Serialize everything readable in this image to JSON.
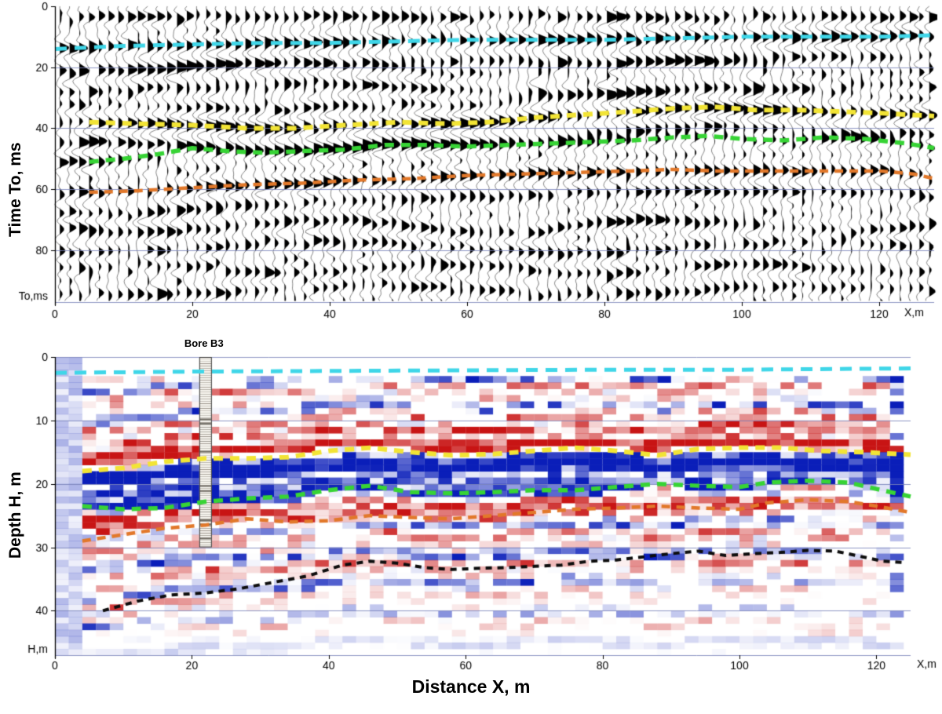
{
  "figure": {
    "background": "#ffffff",
    "grid_color": "#7b85bb"
  },
  "chart_data": [
    {
      "id": "time_section",
      "type": "heatmap",
      "subtype": "seismic-wiggle-section",
      "title": "",
      "ylabel": "Time To, ms",
      "xlabel": "",
      "y_corner_label": "To,ms",
      "x_corner_label": "X,m",
      "y_ticks": [
        0,
        20,
        40,
        60,
        80
      ],
      "x_ticks": [
        0,
        20,
        40,
        60,
        80,
        100,
        120
      ],
      "ylim": [
        0,
        97
      ],
      "xlim": [
        0,
        128
      ],
      "grid": true,
      "horizons": [
        {
          "name": "cyan",
          "color": "#3fd6e8",
          "points": [
            [
              0,
              14
            ],
            [
              10,
              13
            ],
            [
              20,
              12.5
            ],
            [
              30,
              12
            ],
            [
              40,
              12
            ],
            [
              50,
              11.5
            ],
            [
              60,
              11
            ],
            [
              70,
              11
            ],
            [
              80,
              11
            ],
            [
              90,
              10.5
            ],
            [
              100,
              10
            ],
            [
              110,
              10
            ],
            [
              120,
              10
            ],
            [
              128,
              9.5
            ]
          ]
        },
        {
          "name": "yellow",
          "color": "#f2e435",
          "points": [
            [
              5,
              38
            ],
            [
              12,
              38.5
            ],
            [
              20,
              39
            ],
            [
              28,
              40
            ],
            [
              35,
              40
            ],
            [
              42,
              39
            ],
            [
              50,
              38
            ],
            [
              57,
              38.5
            ],
            [
              63,
              38
            ],
            [
              70,
              36.5
            ],
            [
              77,
              35.5
            ],
            [
              84,
              34.5
            ],
            [
              90,
              33.5
            ],
            [
              96,
              33
            ],
            [
              102,
              34
            ],
            [
              108,
              34
            ],
            [
              114,
              34.5
            ],
            [
              120,
              35
            ],
            [
              128,
              36
            ]
          ]
        },
        {
          "name": "green",
          "color": "#37d435",
          "points": [
            [
              5,
              51
            ],
            [
              10,
              50
            ],
            [
              15,
              48.5
            ],
            [
              20,
              46.5
            ],
            [
              25,
              47.5
            ],
            [
              30,
              48
            ],
            [
              36,
              47.5
            ],
            [
              42,
              47
            ],
            [
              48,
              45.5
            ],
            [
              54,
              45.5
            ],
            [
              60,
              46
            ],
            [
              66,
              45.5
            ],
            [
              72,
              45
            ],
            [
              78,
              44.5
            ],
            [
              84,
              44
            ],
            [
              90,
              43
            ],
            [
              95,
              42.5
            ],
            [
              100,
              43.5
            ],
            [
              106,
              44
            ],
            [
              112,
              43
            ],
            [
              118,
              43.5
            ],
            [
              124,
              45
            ],
            [
              128,
              46.5
            ]
          ]
        },
        {
          "name": "orange",
          "color": "#e2782a",
          "points": [
            [
              5,
              61
            ],
            [
              12,
              60.5
            ],
            [
              20,
              59.5
            ],
            [
              28,
              58.5
            ],
            [
              36,
              58
            ],
            [
              44,
              57
            ],
            [
              52,
              56.5
            ],
            [
              60,
              55.5
            ],
            [
              68,
              55
            ],
            [
              76,
              54.5
            ],
            [
              84,
              54
            ],
            [
              90,
              53.5
            ],
            [
              96,
              54
            ],
            [
              104,
              54
            ],
            [
              112,
              54
            ],
            [
              120,
              54
            ],
            [
              125,
              55
            ],
            [
              128,
              56.5
            ]
          ]
        }
      ]
    },
    {
      "id": "depth_section",
      "type": "heatmap",
      "subtype": "seismic-amplitude-depth-section",
      "title": "",
      "ylabel": "Depth  H, m",
      "xlabel": "Distance X, m",
      "y_corner_label": "H,m",
      "x_corner_label": "X,m",
      "y_ticks": [
        0,
        10,
        20,
        30,
        40
      ],
      "x_ticks": [
        0,
        20,
        40,
        60,
        80,
        100,
        120
      ],
      "ylim": [
        0,
        47
      ],
      "xlim": [
        0,
        125
      ],
      "grid": true,
      "amplitude_colors": {
        "positive": "#c81414",
        "negative": "#0a1eb9"
      },
      "borehole": {
        "label": "Bore B3",
        "x": 22,
        "depth_top": 0,
        "depth_bottom": 30
      },
      "horizons": [
        {
          "name": "cyan",
          "color": "#3fd6e8",
          "points": [
            [
              0,
              2.5
            ],
            [
              20,
              2.3
            ],
            [
              40,
              2.2
            ],
            [
              60,
              2.1
            ],
            [
              80,
              2
            ],
            [
              100,
              2
            ],
            [
              125,
              1.8
            ]
          ]
        },
        {
          "name": "yellow",
          "color": "#f2e435",
          "points": [
            [
              4,
              18
            ],
            [
              10,
              17.5
            ],
            [
              16,
              16.5
            ],
            [
              22,
              16
            ],
            [
              28,
              16
            ],
            [
              34,
              15.8
            ],
            [
              40,
              14.8
            ],
            [
              46,
              14.3
            ],
            [
              52,
              15
            ],
            [
              58,
              15.5
            ],
            [
              64,
              15.3
            ],
            [
              70,
              14.8
            ],
            [
              76,
              14.3
            ],
            [
              82,
              14.8
            ],
            [
              88,
              15.5
            ],
            [
              94,
              14.5
            ],
            [
              100,
              14.3
            ],
            [
              106,
              14.3
            ],
            [
              112,
              14.8
            ],
            [
              118,
              15
            ],
            [
              125,
              15.4
            ]
          ]
        },
        {
          "name": "green",
          "color": "#37d435",
          "points": [
            [
              4,
              23.5
            ],
            [
              10,
              24
            ],
            [
              16,
              23.8
            ],
            [
              22,
              22.8
            ],
            [
              28,
              22.3
            ],
            [
              34,
              22
            ],
            [
              40,
              21
            ],
            [
              46,
              20.3
            ],
            [
              52,
              21.3
            ],
            [
              58,
              21.5
            ],
            [
              64,
              21.3
            ],
            [
              70,
              21
            ],
            [
              76,
              21
            ],
            [
              82,
              20.5
            ],
            [
              88,
              20
            ],
            [
              94,
              20.3
            ],
            [
              100,
              20.5
            ],
            [
              104,
              19.8
            ],
            [
              110,
              19.5
            ],
            [
              116,
              19.8
            ],
            [
              120,
              20.8
            ],
            [
              125,
              22
            ]
          ]
        },
        {
          "name": "orange",
          "color": "#e2782a",
          "points": [
            [
              4,
              29
            ],
            [
              10,
              28
            ],
            [
              16,
              27
            ],
            [
              22,
              26.5
            ],
            [
              28,
              25.5
            ],
            [
              34,
              26
            ],
            [
              40,
              25.8
            ],
            [
              46,
              25
            ],
            [
              52,
              25.3
            ],
            [
              58,
              25.5
            ],
            [
              64,
              25
            ],
            [
              70,
              24.5
            ],
            [
              76,
              24
            ],
            [
              82,
              23.8
            ],
            [
              88,
              23.5
            ],
            [
              94,
              23.8
            ],
            [
              100,
              24
            ],
            [
              104,
              23
            ],
            [
              110,
              22.5
            ],
            [
              116,
              22.8
            ],
            [
              120,
              23.5
            ],
            [
              125,
              24.5
            ]
          ]
        },
        {
          "name": "black",
          "color": "#0d0d0d",
          "points": [
            [
              7,
              40
            ],
            [
              12,
              38.5
            ],
            [
              17,
              37.5
            ],
            [
              22,
              37.2
            ],
            [
              27,
              36.5
            ],
            [
              32,
              35.5
            ],
            [
              37,
              34.5
            ],
            [
              42,
              32.8
            ],
            [
              46,
              32.2
            ],
            [
              50,
              32.5
            ],
            [
              54,
              33.2
            ],
            [
              58,
              33.5
            ],
            [
              62,
              33.3
            ],
            [
              66,
              33.2
            ],
            [
              70,
              33
            ],
            [
              74,
              32.8
            ],
            [
              78,
              32.2
            ],
            [
              82,
              32
            ],
            [
              86,
              31.5
            ],
            [
              90,
              31
            ],
            [
              94,
              30.6
            ],
            [
              98,
              31.3
            ],
            [
              102,
              31
            ],
            [
              106,
              30.8
            ],
            [
              110,
              30.5
            ],
            [
              114,
              30.6
            ],
            [
              118,
              31.5
            ],
            [
              121,
              32.2
            ],
            [
              124,
              32.4
            ]
          ]
        }
      ]
    }
  ]
}
